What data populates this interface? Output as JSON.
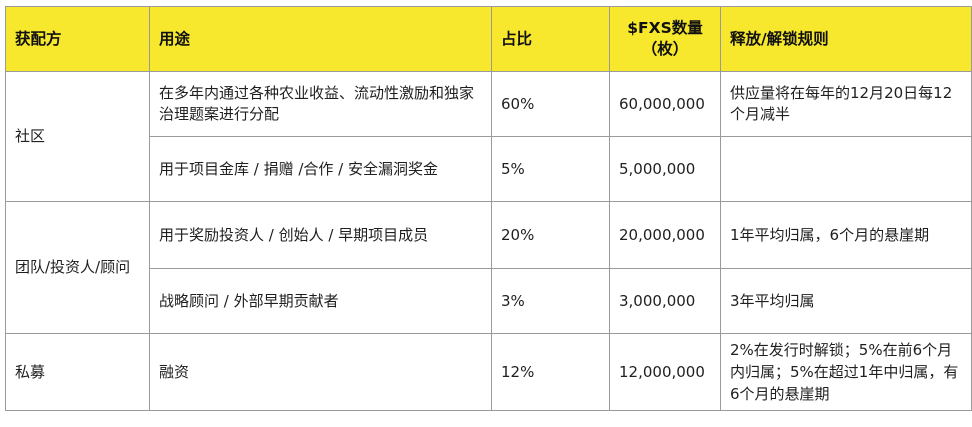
{
  "table": {
    "headers": {
      "recipient": "获配方",
      "purpose": "用途",
      "share": "占比",
      "amount_line1": "$FXS数量",
      "amount_line2": "（枚）",
      "release": "释放/解锁规则"
    },
    "groups": {
      "community": "社区",
      "team": "团队/投资人/顾问",
      "private": "私募"
    },
    "rows": [
      {
        "purpose": "在多年内通过各种农业收益、流动性激励和独家治理题案进行分配",
        "share": "60%",
        "amount": "60,000,000",
        "release": "供应量将在每年的12月20日每12个月减半"
      },
      {
        "purpose": "用于项目金库 / 捐赠 /合作 / 安全漏洞奖金",
        "share": "5%",
        "amount": "5,000,000",
        "release": ""
      },
      {
        "purpose": "用于奖励投资人 / 创始人 / 早期项目成员",
        "share": "20%",
        "amount": "20,000,000",
        "release": "1年平均归属，6个月的悬崖期"
      },
      {
        "purpose": "战略顾问 / 外部早期贡献者",
        "share": "3%",
        "amount": "3,000,000",
        "release": "3年平均归属"
      },
      {
        "purpose": "融资",
        "share": "12%",
        "amount": "12,000,000",
        "release": "2%在发行时解锁；5%在前6个月内归属；5%在超过1年中归属，有6个月的悬崖期"
      }
    ]
  }
}
